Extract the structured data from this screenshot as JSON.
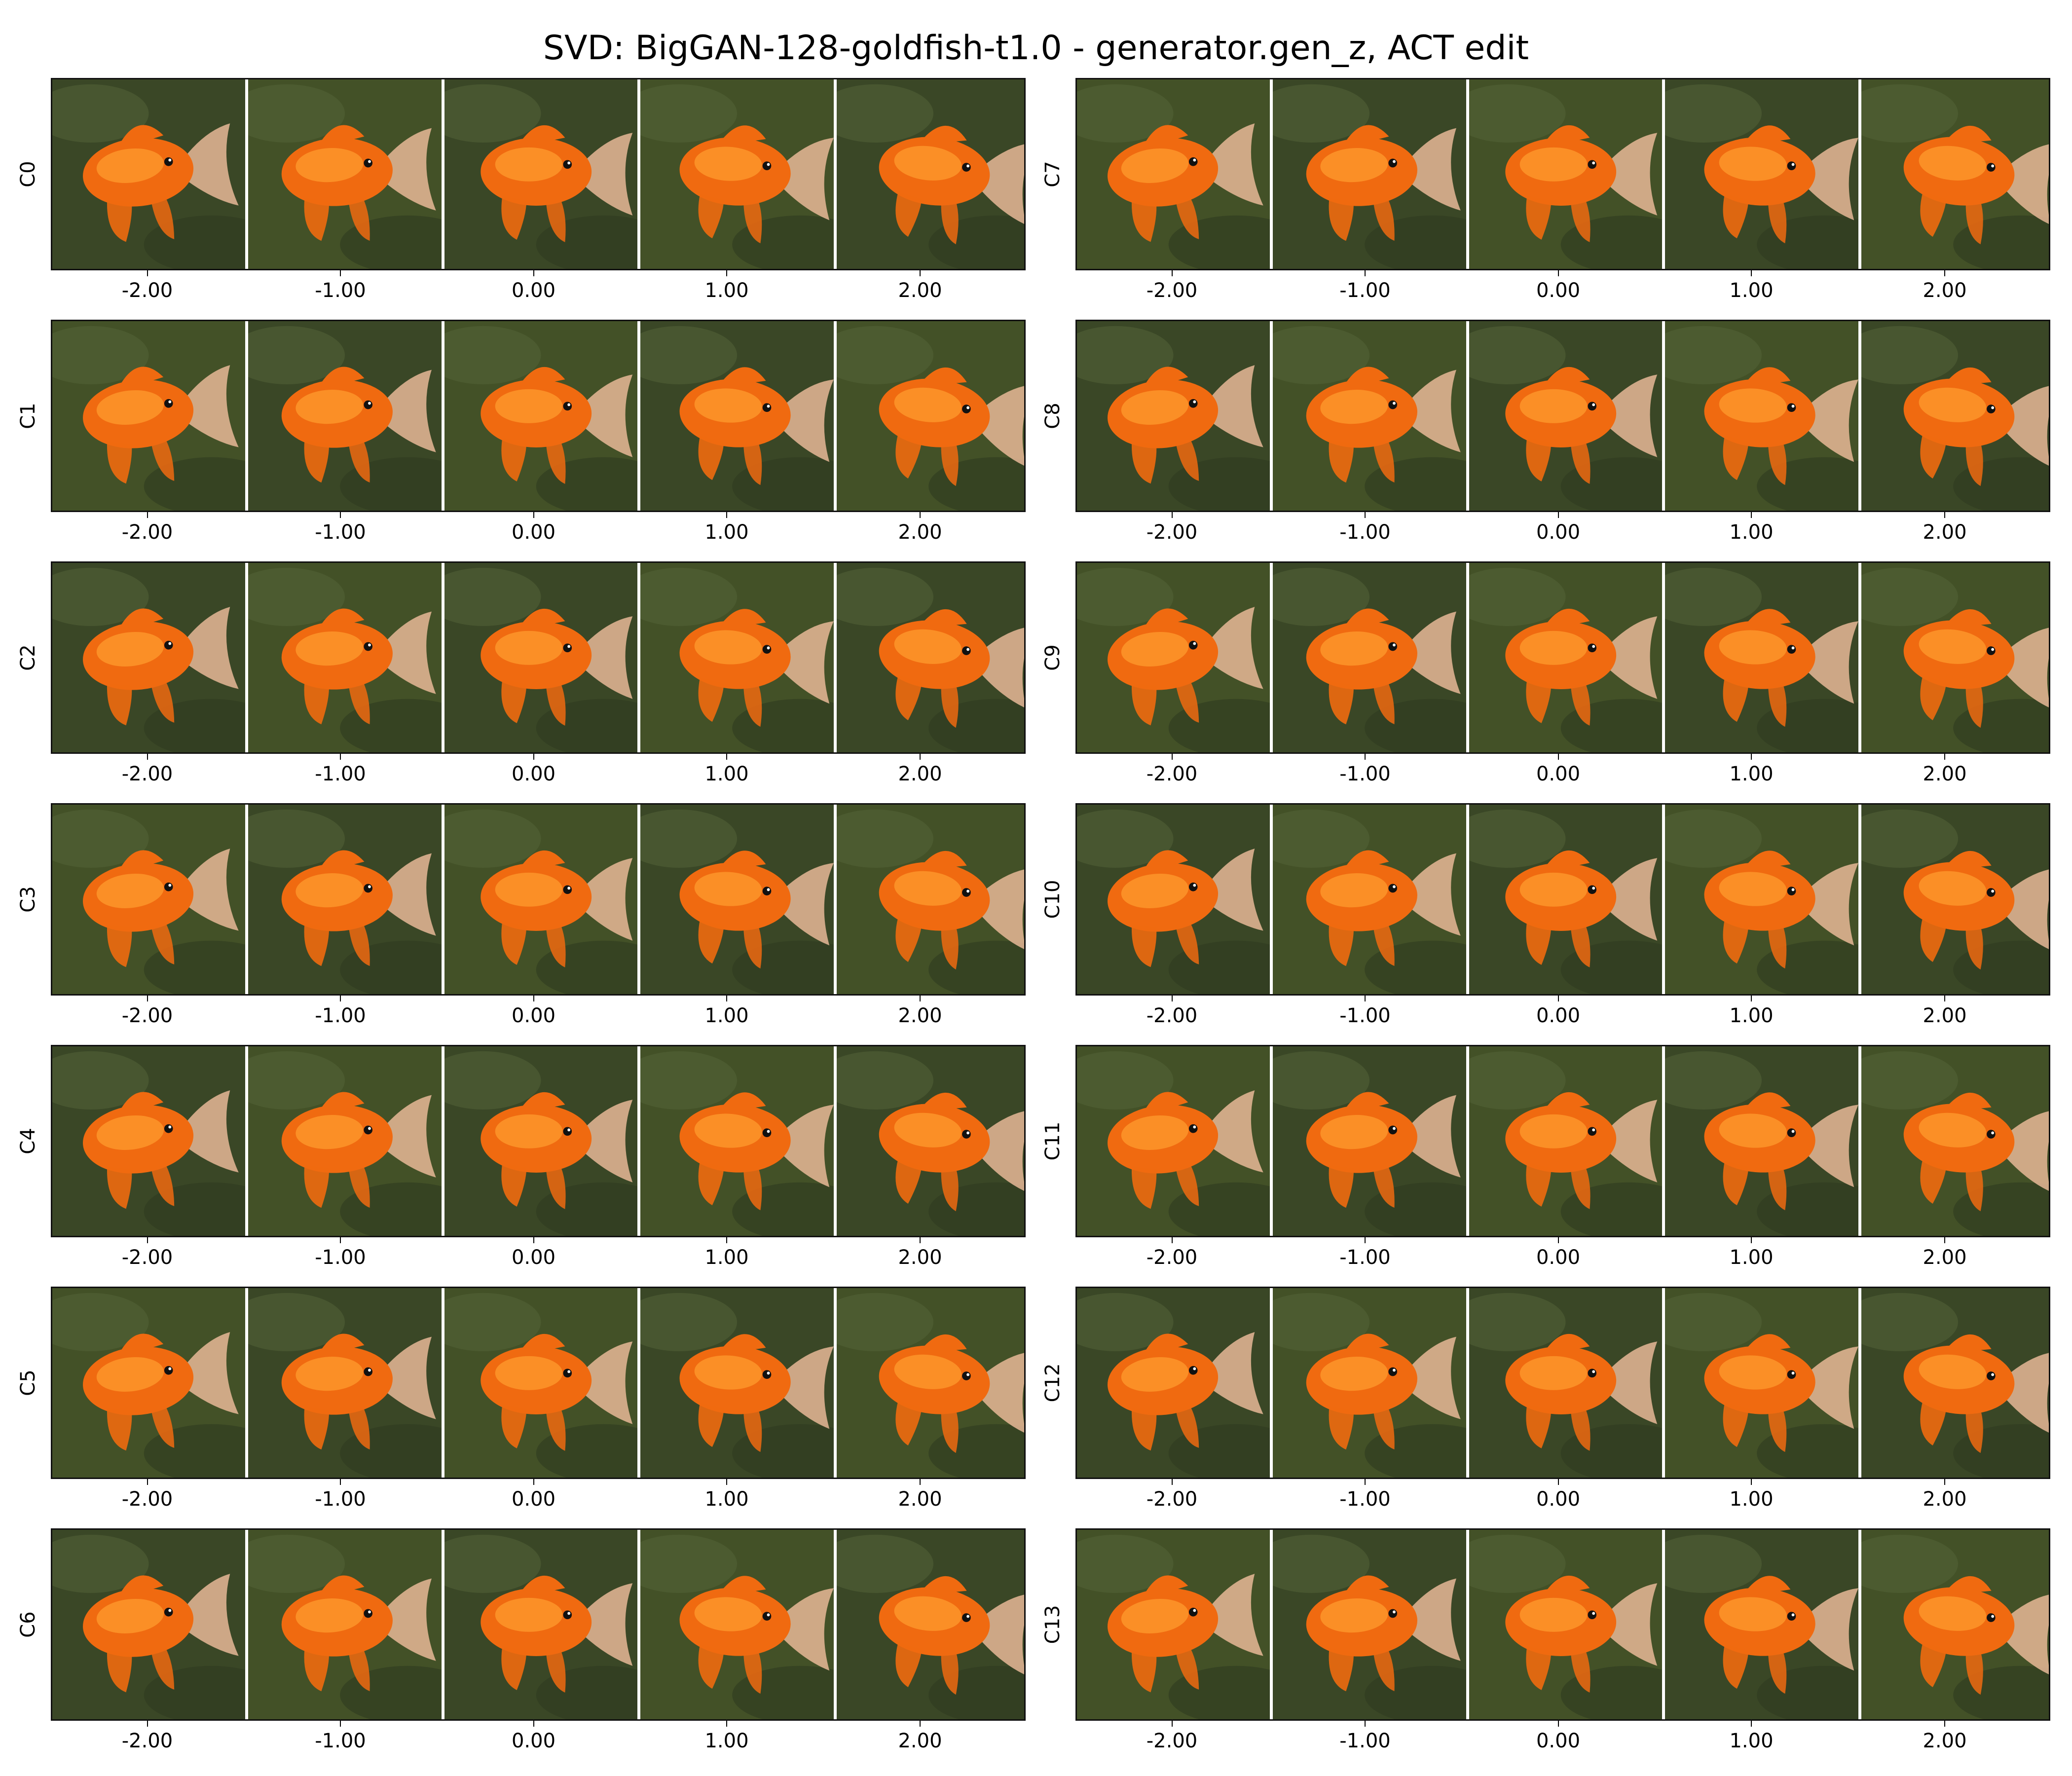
{
  "figure": {
    "title": "SVD: BigGAN-128-goldfish-t1.0 - generator.gen_z, ACT edit",
    "x_ticks": [
      "-2.00",
      "-1.00",
      "0.00",
      "1.00",
      "2.00"
    ],
    "colors": {
      "background": "#3c4a28",
      "fish_body": "#f06a10",
      "fish_highlight": "#ffa030",
      "fin": "#e8b898",
      "separator": "#ffffff"
    },
    "icon": "goldfish-image-cell"
  },
  "components": [
    {
      "label": "C0",
      "column": 0,
      "row": 0
    },
    {
      "label": "C1",
      "column": 0,
      "row": 1
    },
    {
      "label": "C2",
      "column": 0,
      "row": 2
    },
    {
      "label": "C3",
      "column": 0,
      "row": 3
    },
    {
      "label": "C4",
      "column": 0,
      "row": 4
    },
    {
      "label": "C5",
      "column": 0,
      "row": 5
    },
    {
      "label": "C6",
      "column": 0,
      "row": 6
    },
    {
      "label": "C7",
      "column": 1,
      "row": 0
    },
    {
      "label": "C8",
      "column": 1,
      "row": 1
    },
    {
      "label": "C9",
      "column": 1,
      "row": 2
    },
    {
      "label": "C10",
      "column": 1,
      "row": 3
    },
    {
      "label": "C11",
      "column": 1,
      "row": 4
    },
    {
      "label": "C12",
      "column": 1,
      "row": 5
    },
    {
      "label": "C13",
      "column": 1,
      "row": 6
    }
  ]
}
